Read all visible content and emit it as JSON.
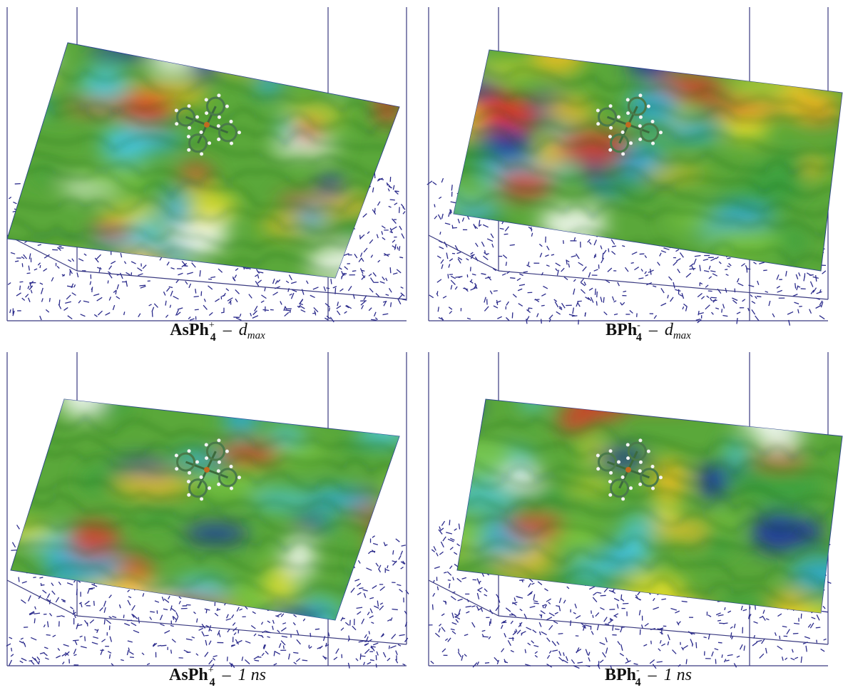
{
  "panels": [
    {
      "caption": {
        "ion": "AsPh",
        "ion_subscript": "4",
        "ion_charge": "+",
        "separator": "–",
        "condition": "d",
        "condition_subscript": "max"
      }
    },
    {
      "caption": {
        "ion": "BPh",
        "ion_subscript": "4",
        "ion_charge": "-",
        "separator": "–",
        "condition": "d",
        "condition_subscript": "max"
      }
    },
    {
      "caption": {
        "ion": "AsPh",
        "ion_subscript": "4",
        "ion_charge": "+",
        "separator": "–",
        "condition": "1 ns"
      }
    },
    {
      "caption": {
        "ion": "BPh",
        "ion_subscript": "4",
        "ion_charge": "-",
        "separator": "–",
        "condition": "1 ns"
      }
    }
  ]
}
